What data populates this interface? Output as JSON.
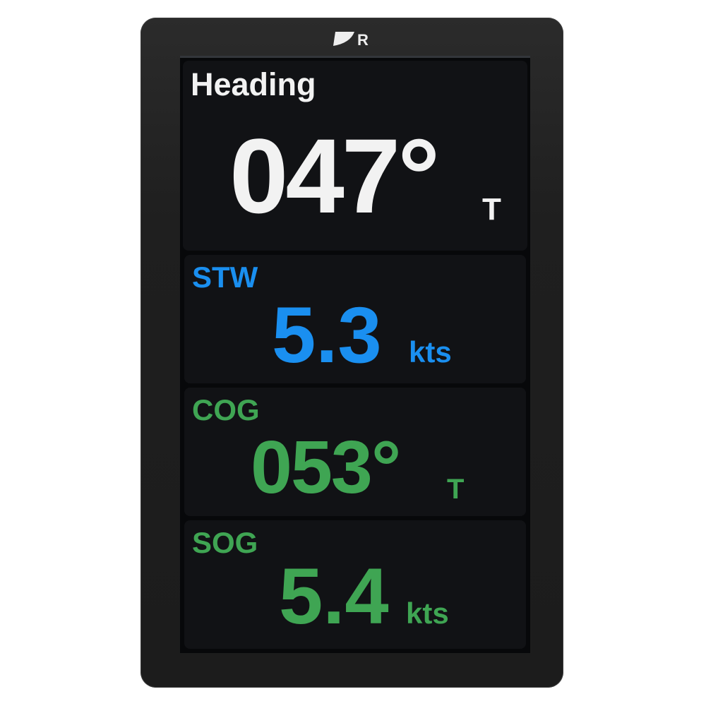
{
  "brand": {
    "logo_text": "R"
  },
  "colors": {
    "heading": "#f2f2f2",
    "stw": "#1a8ff0",
    "cog": "#3fa553",
    "sog": "#3fa553"
  },
  "panels": {
    "heading": {
      "label": "Heading",
      "value": "047°",
      "unit": "T"
    },
    "stw": {
      "label": "STW",
      "value": "5.3",
      "unit": "kts"
    },
    "cog": {
      "label": "COG",
      "value": "053°",
      "unit": "T"
    },
    "sog": {
      "label": "SOG",
      "value": "5.4",
      "unit": "kts"
    }
  }
}
